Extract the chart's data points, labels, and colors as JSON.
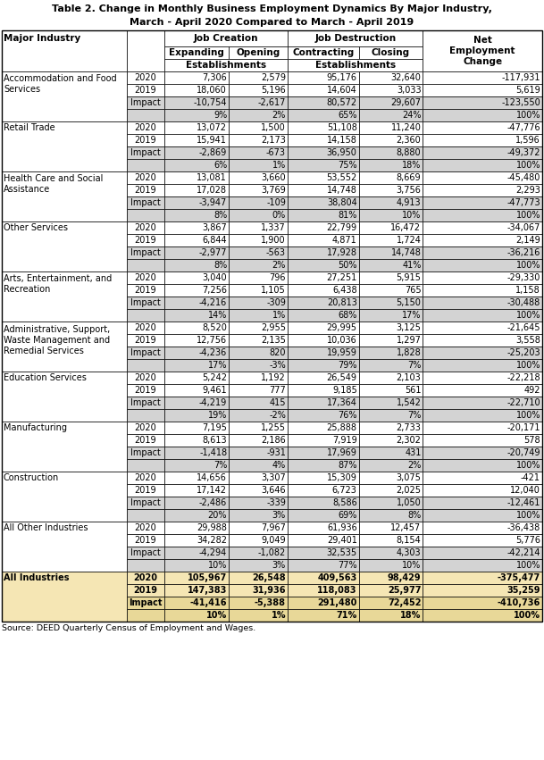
{
  "title_line1": "Table 2. Change in Monthly Business Employment Dynamics By Major Industry,",
  "title_line2": "March - April 2020 Compared to March - April 2019",
  "industries": [
    {
      "name": "Accommodation and Food\nServices",
      "name_lines": 2,
      "rows": [
        {
          "year": "2020",
          "expanding": "7,306",
          "opening": "2,579",
          "contracting": "95,176",
          "closing": "32,640",
          "net": "-117,931",
          "shade": false
        },
        {
          "year": "2019",
          "expanding": "18,060",
          "opening": "5,196",
          "contracting": "14,604",
          "closing": "3,033",
          "net": "5,619",
          "shade": false
        },
        {
          "year": "Impact",
          "expanding": "-10,754",
          "opening": "-2,617",
          "contracting": "80,572",
          "closing": "29,607",
          "net": "-123,550",
          "shade": true
        },
        {
          "year": "",
          "expanding": "9%",
          "opening": "2%",
          "contracting": "65%",
          "closing": "24%",
          "net": "100%",
          "shade": true
        }
      ]
    },
    {
      "name": "Retail Trade",
      "name_lines": 1,
      "rows": [
        {
          "year": "2020",
          "expanding": "13,072",
          "opening": "1,500",
          "contracting": "51,108",
          "closing": "11,240",
          "net": "-47,776",
          "shade": false
        },
        {
          "year": "2019",
          "expanding": "15,941",
          "opening": "2,173",
          "contracting": "14,158",
          "closing": "2,360",
          "net": "1,596",
          "shade": false
        },
        {
          "year": "Impact",
          "expanding": "-2,869",
          "opening": "-673",
          "contracting": "36,950",
          "closing": "8,880",
          "net": "-49,372",
          "shade": true
        },
        {
          "year": "",
          "expanding": "6%",
          "opening": "1%",
          "contracting": "75%",
          "closing": "18%",
          "net": "100%",
          "shade": true
        }
      ]
    },
    {
      "name": "Health Care and Social\nAssistance",
      "name_lines": 2,
      "rows": [
        {
          "year": "2020",
          "expanding": "13,081",
          "opening": "3,660",
          "contracting": "53,552",
          "closing": "8,669",
          "net": "-45,480",
          "shade": false
        },
        {
          "year": "2019",
          "expanding": "17,028",
          "opening": "3,769",
          "contracting": "14,748",
          "closing": "3,756",
          "net": "2,293",
          "shade": false
        },
        {
          "year": "Impact",
          "expanding": "-3,947",
          "opening": "-109",
          "contracting": "38,804",
          "closing": "4,913",
          "net": "-47,773",
          "shade": true
        },
        {
          "year": "",
          "expanding": "8%",
          "opening": "0%",
          "contracting": "81%",
          "closing": "10%",
          "net": "100%",
          "shade": true
        }
      ]
    },
    {
      "name": "Other Services",
      "name_lines": 1,
      "rows": [
        {
          "year": "2020",
          "expanding": "3,867",
          "opening": "1,337",
          "contracting": "22,799",
          "closing": "16,472",
          "net": "-34,067",
          "shade": false
        },
        {
          "year": "2019",
          "expanding": "6,844",
          "opening": "1,900",
          "contracting": "4,871",
          "closing": "1,724",
          "net": "2,149",
          "shade": false
        },
        {
          "year": "Impact",
          "expanding": "-2,977",
          "opening": "-563",
          "contracting": "17,928",
          "closing": "14,748",
          "net": "-36,216",
          "shade": true
        },
        {
          "year": "",
          "expanding": "8%",
          "opening": "2%",
          "contracting": "50%",
          "closing": "41%",
          "net": "100%",
          "shade": true
        }
      ]
    },
    {
      "name": "Arts, Entertainment, and\nRecreation",
      "name_lines": 2,
      "rows": [
        {
          "year": "2020",
          "expanding": "3,040",
          "opening": "796",
          "contracting": "27,251",
          "closing": "5,915",
          "net": "-29,330",
          "shade": false
        },
        {
          "year": "2019",
          "expanding": "7,256",
          "opening": "1,105",
          "contracting": "6,438",
          "closing": "765",
          "net": "1,158",
          "shade": false
        },
        {
          "year": "Impact",
          "expanding": "-4,216",
          "opening": "-309",
          "contracting": "20,813",
          "closing": "5,150",
          "net": "-30,488",
          "shade": true
        },
        {
          "year": "",
          "expanding": "14%",
          "opening": "1%",
          "contracting": "68%",
          "closing": "17%",
          "net": "100%",
          "shade": true
        }
      ]
    },
    {
      "name": "Administrative, Support,\nWaste Management and\nRemedial Services",
      "name_lines": 3,
      "rows": [
        {
          "year": "2020",
          "expanding": "8,520",
          "opening": "2,955",
          "contracting": "29,995",
          "closing": "3,125",
          "net": "-21,645",
          "shade": false
        },
        {
          "year": "2019",
          "expanding": "12,756",
          "opening": "2,135",
          "contracting": "10,036",
          "closing": "1,297",
          "net": "3,558",
          "shade": false
        },
        {
          "year": "Impact",
          "expanding": "-4,236",
          "opening": "820",
          "contracting": "19,959",
          "closing": "1,828",
          "net": "-25,203",
          "shade": true
        },
        {
          "year": "",
          "expanding": "17%",
          "opening": "-3%",
          "contracting": "79%",
          "closing": "7%",
          "net": "100%",
          "shade": true
        }
      ]
    },
    {
      "name": "Education Services",
      "name_lines": 1,
      "rows": [
        {
          "year": "2020",
          "expanding": "5,242",
          "opening": "1,192",
          "contracting": "26,549",
          "closing": "2,103",
          "net": "-22,218",
          "shade": false
        },
        {
          "year": "2019",
          "expanding": "9,461",
          "opening": "777",
          "contracting": "9,185",
          "closing": "561",
          "net": "492",
          "shade": false
        },
        {
          "year": "Impact",
          "expanding": "-4,219",
          "opening": "415",
          "contracting": "17,364",
          "closing": "1,542",
          "net": "-22,710",
          "shade": true
        },
        {
          "year": "",
          "expanding": "19%",
          "opening": "-2%",
          "contracting": "76%",
          "closing": "7%",
          "net": "100%",
          "shade": true
        }
      ]
    },
    {
      "name": "Manufacturing",
      "name_lines": 1,
      "rows": [
        {
          "year": "2020",
          "expanding": "7,195",
          "opening": "1,255",
          "contracting": "25,888",
          "closing": "2,733",
          "net": "-20,171",
          "shade": false
        },
        {
          "year": "2019",
          "expanding": "8,613",
          "opening": "2,186",
          "contracting": "7,919",
          "closing": "2,302",
          "net": "578",
          "shade": false
        },
        {
          "year": "Impact",
          "expanding": "-1,418",
          "opening": "-931",
          "contracting": "17,969",
          "closing": "431",
          "net": "-20,749",
          "shade": true
        },
        {
          "year": "",
          "expanding": "7%",
          "opening": "4%",
          "contracting": "87%",
          "closing": "2%",
          "net": "100%",
          "shade": true
        }
      ]
    },
    {
      "name": "Construction",
      "name_lines": 1,
      "rows": [
        {
          "year": "2020",
          "expanding": "14,656",
          "opening": "3,307",
          "contracting": "15,309",
          "closing": "3,075",
          "net": "-421",
          "shade": false
        },
        {
          "year": "2019",
          "expanding": "17,142",
          "opening": "3,646",
          "contracting": "6,723",
          "closing": "2,025",
          "net": "12,040",
          "shade": false
        },
        {
          "year": "Impact",
          "expanding": "-2,486",
          "opening": "-339",
          "contracting": "8,586",
          "closing": "1,050",
          "net": "-12,461",
          "shade": true
        },
        {
          "year": "",
          "expanding": "20%",
          "opening": "3%",
          "contracting": "69%",
          "closing": "8%",
          "net": "100%",
          "shade": true
        }
      ]
    },
    {
      "name": "All Other Industries",
      "name_lines": 1,
      "rows": [
        {
          "year": "2020",
          "expanding": "29,988",
          "opening": "7,967",
          "contracting": "61,936",
          "closing": "12,457",
          "net": "-36,438",
          "shade": false
        },
        {
          "year": "2019",
          "expanding": "34,282",
          "opening": "9,049",
          "contracting": "29,401",
          "closing": "8,154",
          "net": "5,776",
          "shade": false
        },
        {
          "year": "Impact",
          "expanding": "-4,294",
          "opening": "-1,082",
          "contracting": "32,535",
          "closing": "4,303",
          "net": "-42,214",
          "shade": true
        },
        {
          "year": "",
          "expanding": "10%",
          "opening": "3%",
          "contracting": "77%",
          "closing": "10%",
          "net": "100%",
          "shade": true
        }
      ]
    },
    {
      "name": "All Industries",
      "name_lines": 1,
      "highlight": true,
      "rows": [
        {
          "year": "2020",
          "expanding": "105,967",
          "opening": "26,548",
          "contracting": "409,563",
          "closing": "98,429",
          "net": "-375,477",
          "shade": false
        },
        {
          "year": "2019",
          "expanding": "147,383",
          "opening": "31,936",
          "contracting": "118,083",
          "closing": "25,977",
          "net": "35,259",
          "shade": false
        },
        {
          "year": "Impact",
          "expanding": "-41,416",
          "opening": "-5,388",
          "contracting": "291,480",
          "closing": "72,452",
          "net": "-410,736",
          "shade": true
        },
        {
          "year": "",
          "expanding": "10%",
          "opening": "1%",
          "contracting": "71%",
          "closing": "18%",
          "net": "100%",
          "shade": true
        }
      ]
    }
  ],
  "footer": "Source: DEED Quarterly Census of Employment and Wages.",
  "shade_color": "#d3d3d3",
  "highlight_color": "#f5e6b4",
  "highlight_shade_color": "#e8d898"
}
